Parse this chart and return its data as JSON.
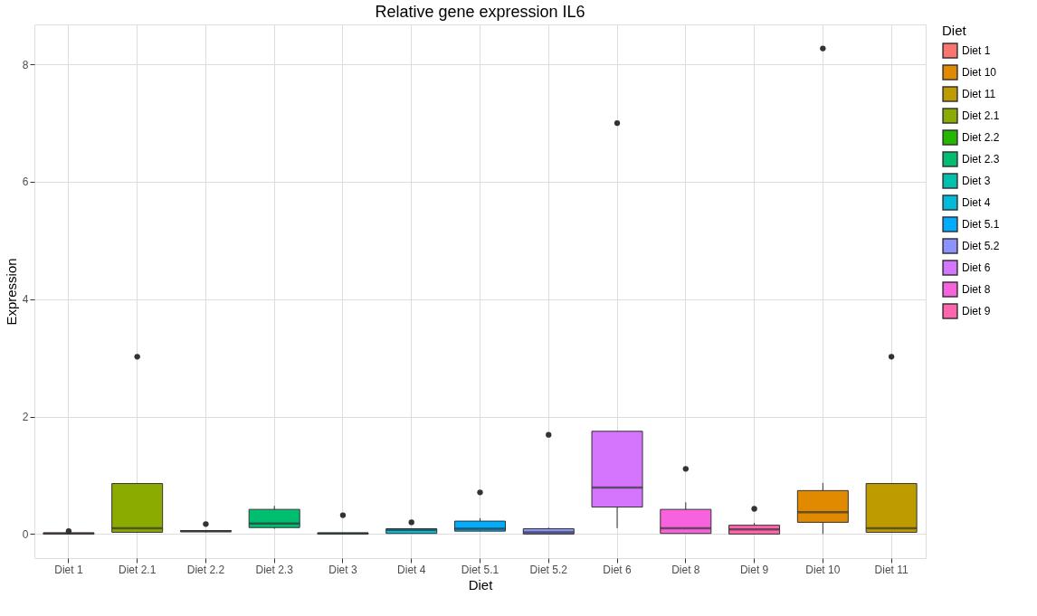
{
  "chart_data": {
    "type": "box",
    "title": "Relative gene expression IL6",
    "xlabel": "Diet",
    "ylabel": "Expression",
    "legend_title": "Diet",
    "legend": "right",
    "grid": true,
    "categories": [
      "Diet 1",
      "Diet 2.1",
      "Diet 2.2",
      "Diet 2.3",
      "Diet 3",
      "Diet 4",
      "Diet 5.1",
      "Diet 5.2",
      "Diet 6",
      "Diet 8",
      "Diet 9",
      "Diet 10",
      "Diet 11"
    ],
    "series": [
      {
        "name": "Diet 1",
        "color": "#f8766d",
        "boxes": [
          {
            "low": 0,
            "q1": 0,
            "median": 0.01,
            "q3": 0.02,
            "high": 0.03,
            "outliers": [
              0.05
            ]
          },
          null,
          null,
          null,
          null,
          null,
          null,
          null,
          null,
          null,
          null,
          null,
          null
        ]
      },
      {
        "name": "Diet 10",
        "color": "#e18a00",
        "boxes": [
          null,
          null,
          null,
          null,
          null,
          null,
          null,
          null,
          null,
          null,
          null,
          {
            "low": 0,
            "q1": 0.2,
            "median": 0.37,
            "q3": 0.74,
            "high": 0.87,
            "outliers": [
              8.27
            ]
          },
          null
        ]
      },
      {
        "name": "Diet 11",
        "color": "#be9c00",
        "boxes": [
          null,
          null,
          null,
          null,
          null,
          null,
          null,
          null,
          null,
          null,
          null,
          null,
          {
            "low": 0.03,
            "q1": 0.03,
            "median": 0.1,
            "q3": 0.86,
            "high": 0.86,
            "outliers": [
              3.02
            ]
          }
        ]
      },
      {
        "name": "Diet 2.1",
        "color": "#8cab00",
        "boxes": [
          null,
          {
            "low": 0.02,
            "q1": 0.03,
            "median": 0.1,
            "q3": 0.86,
            "high": 0.87,
            "outliers": [
              3.02
            ]
          },
          null,
          null,
          null,
          null,
          null,
          null,
          null,
          null,
          null,
          null,
          null
        ]
      },
      {
        "name": "Diet 2.2",
        "color": "#24b700",
        "boxes": [
          null,
          null,
          {
            "low": 0.03,
            "q1": 0.04,
            "median": 0.05,
            "q3": 0.06,
            "high": 0.06,
            "outliers": [
              0.17
            ]
          },
          null,
          null,
          null,
          null,
          null,
          null,
          null,
          null,
          null,
          null
        ]
      },
      {
        "name": "Diet 2.3",
        "color": "#00be70",
        "boxes": [
          null,
          null,
          null,
          {
            "low": 0.09,
            "q1": 0.11,
            "median": 0.18,
            "q3": 0.42,
            "high": 0.48
          },
          null,
          null,
          null,
          null,
          null,
          null,
          null,
          null,
          null
        ]
      },
      {
        "name": "Diet 3",
        "color": "#00c1ab",
        "boxes": [
          null,
          null,
          null,
          null,
          {
            "low": 0,
            "q1": 0,
            "median": 0.01,
            "q3": 0.02,
            "high": 0.02,
            "outliers": [
              0.32
            ]
          },
          null,
          null,
          null,
          null,
          null,
          null,
          null,
          null
        ]
      },
      {
        "name": "Diet 4",
        "color": "#00bbda",
        "boxes": [
          null,
          null,
          null,
          null,
          null,
          {
            "low": 0.01,
            "q1": 0.01,
            "median": 0.07,
            "q3": 0.09,
            "high": 0.09,
            "outliers": [
              0.2
            ]
          },
          null,
          null,
          null,
          null,
          null,
          null,
          null
        ]
      },
      {
        "name": "Diet 5.1",
        "color": "#00acfc",
        "boxes": [
          null,
          null,
          null,
          null,
          null,
          null,
          {
            "low": 0.05,
            "q1": 0.05,
            "median": 0.09,
            "q3": 0.22,
            "high": 0.27,
            "outliers": [
              0.71
            ]
          },
          null,
          null,
          null,
          null,
          null,
          null
        ]
      },
      {
        "name": "Diet 5.2",
        "color": "#8b93ff",
        "boxes": [
          null,
          null,
          null,
          null,
          null,
          null,
          null,
          {
            "low": 0,
            "q1": 0,
            "median": 0.03,
            "q3": 0.09,
            "high": 0.11,
            "outliers": [
              1.69
            ]
          },
          null,
          null,
          null,
          null,
          null
        ]
      },
      {
        "name": "Diet 6",
        "color": "#d575fe",
        "boxes": [
          null,
          null,
          null,
          null,
          null,
          null,
          null,
          null,
          {
            "low": 0.1,
            "q1": 0.46,
            "median": 0.79,
            "q3": 1.75,
            "high": 1.75,
            "outliers": [
              7.0
            ]
          },
          null,
          null,
          null,
          null
        ]
      },
      {
        "name": "Diet 8",
        "color": "#f962dd",
        "boxes": [
          null,
          null,
          null,
          null,
          null,
          null,
          null,
          null,
          null,
          {
            "low": 0.01,
            "q1": 0.01,
            "median": 0.1,
            "q3": 0.42,
            "high": 0.54,
            "outliers": [
              1.11
            ]
          },
          null,
          null,
          null
        ]
      },
      {
        "name": "Diet 9",
        "color": "#ff65ac",
        "boxes": [
          null,
          null,
          null,
          null,
          null,
          null,
          null,
          null,
          null,
          null,
          {
            "low": 0,
            "q1": 0,
            "median": 0.08,
            "q3": 0.15,
            "high": 0.19,
            "outliers": [
              0.43
            ]
          },
          null,
          null
        ]
      }
    ],
    "ylim": [
      -0.41,
      8.68
    ],
    "yticks": [
      0,
      2,
      4,
      6,
      8
    ]
  }
}
